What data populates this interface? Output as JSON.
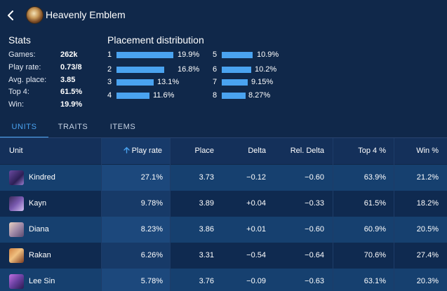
{
  "header": {
    "title": "Heavenly Emblem",
    "back_icon": "chevron-left-icon",
    "item_icon": "heavenly-emblem-icon"
  },
  "stats": {
    "title": "Stats",
    "rows": [
      {
        "label": "Games:",
        "value": "262k"
      },
      {
        "label": "Play rate:",
        "value": "0.73/8"
      },
      {
        "label": "Avg. place:",
        "value": "3.85"
      },
      {
        "label": "Top 4:",
        "value": "61.5%"
      },
      {
        "label": "Win:",
        "value": "19.9%"
      }
    ]
  },
  "placement": {
    "title": "Placement distribution",
    "bar_color": "#4aa3f0",
    "items": [
      {
        "place": "1",
        "value": "19.9%",
        "pct": 19.9
      },
      {
        "place": "2",
        "value": "16.8%",
        "pct": 16.8
      },
      {
        "place": "3",
        "value": "13.1%",
        "pct": 13.1
      },
      {
        "place": "4",
        "value": "11.6%",
        "pct": 11.6
      },
      {
        "place": "5",
        "value": "10.9%",
        "pct": 10.9
      },
      {
        "place": "6",
        "value": "10.2%",
        "pct": 10.2
      },
      {
        "place": "7",
        "value": "9.15%",
        "pct": 9.15
      },
      {
        "place": "8",
        "value": "8.27%",
        "pct": 8.27
      }
    ]
  },
  "tabs": [
    {
      "label": "UNITS",
      "active": true
    },
    {
      "label": "TRAITS",
      "active": false
    },
    {
      "label": "ITEMS",
      "active": false
    }
  ],
  "table": {
    "columns": [
      "Unit",
      "Play rate",
      "Place",
      "Delta",
      "Rel. Delta",
      "Top 4 %",
      "Win %"
    ],
    "sort_icon": "arrow-up-icon",
    "rows": [
      {
        "unit": "Kindred",
        "play_rate": "27.1%",
        "place": "3.73",
        "delta": "−0.12",
        "rel_delta": "−0.60",
        "top4": "63.9%",
        "win": "21.2%"
      },
      {
        "unit": "Kayn",
        "play_rate": "9.78%",
        "place": "3.89",
        "delta": "+0.04",
        "rel_delta": "−0.33",
        "top4": "61.5%",
        "win": "18.2%"
      },
      {
        "unit": "Diana",
        "play_rate": "8.23%",
        "place": "3.86",
        "delta": "+0.01",
        "rel_delta": "−0.60",
        "top4": "60.9%",
        "win": "20.5%"
      },
      {
        "unit": "Rakan",
        "play_rate": "6.26%",
        "place": "3.31",
        "delta": "−0.54",
        "rel_delta": "−0.64",
        "top4": "70.6%",
        "win": "27.4%"
      },
      {
        "unit": "Lee Sin",
        "play_rate": "5.78%",
        "place": "3.76",
        "delta": "−0.09",
        "rel_delta": "−0.63",
        "top4": "63.1%",
        "win": "20.3%"
      }
    ]
  }
}
